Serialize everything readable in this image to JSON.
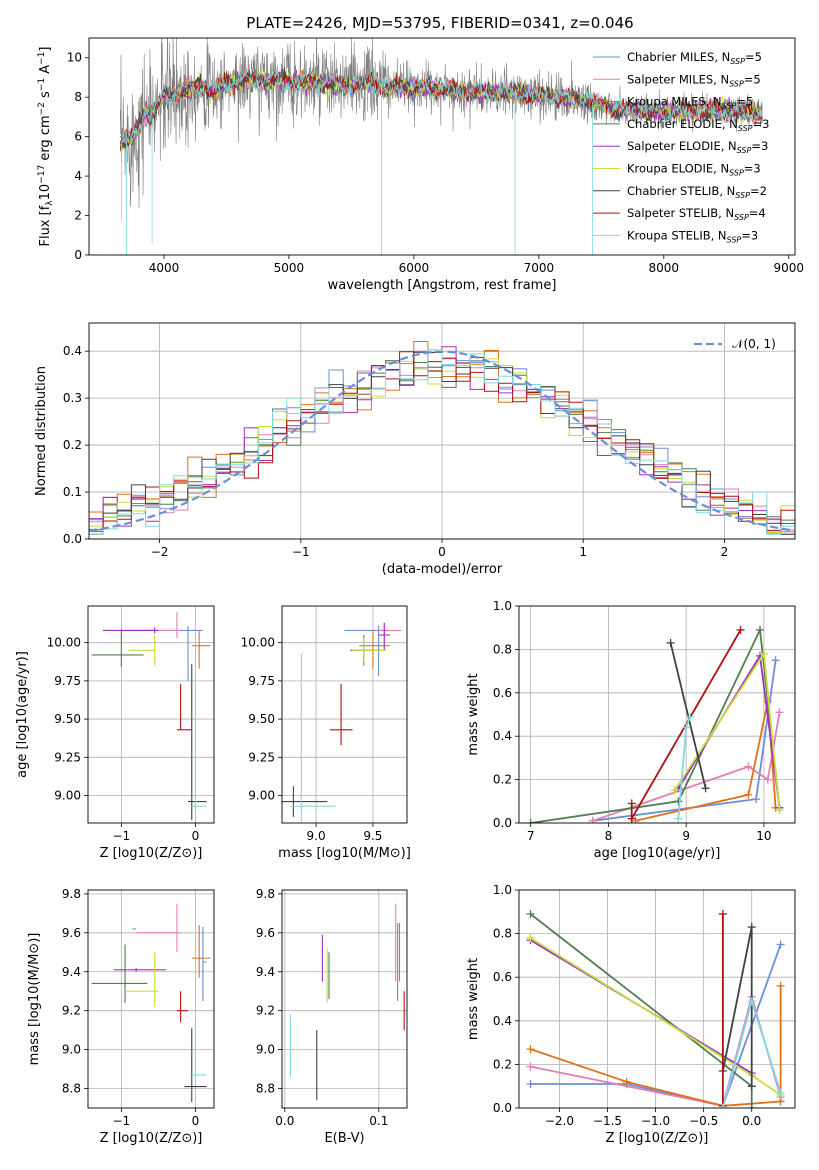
{
  "figure_title": "PLATE=2426, MJD=53795, FIBERID=0341, z=0.046",
  "series_styles": [
    {
      "key": "chab_miles",
      "label": "Chabrier MILES, N_SSP=5",
      "color": "#6a8fd8"
    },
    {
      "key": "salp_miles",
      "label": "Salpeter MILES, N_SSP=5",
      "color": "#e07fb8"
    },
    {
      "key": "krou_miles",
      "label": "Kroupa MILES, N_SSP=5",
      "color": "#e0701a"
    },
    {
      "key": "chab_elodie",
      "label": "Chabrier ELODIE, N_SSP=3",
      "color": "#4f7f4f"
    },
    {
      "key": "salp_elodie",
      "label": "Salpeter ELODIE, N_SSP=3",
      "color": "#a030c0"
    },
    {
      "key": "krou_elodie",
      "label": "Kroupa ELODIE, N_SSP=3",
      "color": "#c8dc3c"
    },
    {
      "key": "chab_stelib",
      "label": "Chabrier STELIB, N_SSP=2",
      "color": "#404040"
    },
    {
      "key": "salp_stelib",
      "label": "Salpeter STELIB, N_SSP=4",
      "color": "#b01010"
    },
    {
      "key": "krou_stelib",
      "label": "Kroupa STELIB, N_SSP=3",
      "color": "#80d8e0"
    }
  ],
  "chart_data": [
    {
      "id": "spectrum",
      "type": "line",
      "title": "PLATE=2426, MJD=53795, FIBERID=0341, z=0.046",
      "xlabel": "wavelength [Angstrom, rest frame]",
      "ylabel": "Flux [f_λ10^-17 erg cm^-2 s^-1 A^-1]",
      "xlim": [
        3400,
        9050
      ],
      "ylim": [
        0,
        11
      ],
      "xticks": [
        4000,
        5000,
        6000,
        7000,
        8000,
        9000
      ],
      "yticks": [
        0,
        2,
        4,
        6,
        8,
        10
      ],
      "grid": false,
      "legend": "right",
      "data_color": "#808080",
      "continuum": {
        "x": [
          3650,
          3700,
          3750,
          3800,
          3850,
          3900,
          3950,
          4000,
          4100,
          4200,
          4300,
          4400,
          4500,
          4600,
          4800,
          5000,
          5200,
          5400,
          5600,
          5800,
          6000,
          6200,
          6400,
          6600,
          6800,
          7000,
          7200,
          7400,
          7600,
          7800,
          8000,
          8200,
          8400,
          8600,
          8800
        ],
        "y": [
          5.6,
          5.8,
          6.0,
          6.6,
          7.3,
          7.0,
          7.6,
          8.0,
          8.2,
          8.4,
          8.6,
          8.3,
          8.7,
          8.8,
          8.9,
          8.8,
          8.7,
          8.6,
          8.7,
          8.5,
          8.5,
          8.4,
          8.3,
          8.2,
          8.2,
          8.1,
          8.0,
          7.8,
          7.4,
          7.3,
          7.2,
          7.3,
          7.3,
          7.3,
          7.2
        ]
      }
    },
    {
      "id": "residuals",
      "type": "line",
      "xlabel": "(data-model)/error",
      "ylabel": "Normed distribution",
      "xlim": [
        -2.5,
        2.5
      ],
      "ylim": [
        0,
        0.46
      ],
      "xticks": [
        -2,
        -1,
        0,
        1,
        2
      ],
      "yticks": [
        0.0,
        0.1,
        0.2,
        0.3,
        0.4
      ],
      "grid": true,
      "legend": "top-right",
      "reference": {
        "label": "N(0,1)",
        "mean": 0,
        "sigma": 1,
        "color": "#6a8fd8",
        "style": "dashed"
      },
      "bin_width": 0.1
    },
    {
      "id": "age_vs_Z",
      "type": "scatter",
      "xlabel": "Z [log10(Z/Z⊙)]",
      "ylabel": "age [log10(age/yr)]",
      "xlim": [
        -1.45,
        0.25
      ],
      "ylim": [
        8.82,
        10.24
      ],
      "xticks": [
        -1,
        0
      ],
      "yticks": [
        9.0,
        9.25,
        9.5,
        9.75,
        10.0
      ],
      "grid": true,
      "points": [
        {
          "s": "chab_miles",
          "x": -0.1,
          "xerr": [
            0.85,
            0.2
          ],
          "y": 10.08,
          "yerr": [
            0.33,
            0.03
          ]
        },
        {
          "s": "salp_miles",
          "x": -0.25,
          "xerr": [
            0.5,
            0.05
          ],
          "y": 10.08,
          "yerr": [
            0.05,
            0.12
          ]
        },
        {
          "s": "krou_miles",
          "x": 0.05,
          "xerr": [
            0.1,
            0.15
          ],
          "y": 9.98,
          "yerr": [
            0.15,
            0.1
          ]
        },
        {
          "s": "chab_elodie",
          "x": -1.0,
          "xerr": [
            0.4,
            0.3
          ],
          "y": 9.92,
          "yerr": [
            0.08,
            0.17
          ]
        },
        {
          "s": "salp_elodie",
          "x": -0.55,
          "xerr": [
            0.7,
            0.05
          ],
          "y": 10.08,
          "yerr": [
            0.02,
            0.02
          ]
        },
        {
          "s": "krou_elodie",
          "x": -0.55,
          "xerr": [
            0.35,
            0.0
          ],
          "y": 9.95,
          "yerr": [
            0.1,
            0.1
          ]
        },
        {
          "s": "chab_stelib",
          "x": -0.05,
          "xerr": [
            0.05,
            0.2
          ],
          "y": 8.96,
          "yerr": [
            0.12,
            0.9
          ]
        },
        {
          "s": "salp_stelib",
          "x": -0.2,
          "xerr": [
            0.05,
            0.15
          ],
          "y": 9.43,
          "yerr": [
            0.0,
            0.3
          ]
        },
        {
          "s": "krou_stelib",
          "x": 0.0,
          "xerr": [
            0.05,
            0.15
          ],
          "y": 8.93,
          "yerr": [
            0.08,
            1.0
          ]
        }
      ]
    },
    {
      "id": "age_vs_mass",
      "type": "scatter",
      "xlabel": "mass [log10(M/M⊙)]",
      "ylabel": "",
      "xlim": [
        8.7,
        9.8
      ],
      "ylim": [
        8.82,
        10.24
      ],
      "xticks": [
        9.0,
        9.5
      ],
      "yticks": [
        9.0,
        9.25,
        9.5,
        9.75,
        10.0
      ],
      "grid": true,
      "points": [
        {
          "s": "chab_miles",
          "x": 9.55,
          "xerr": [
            0.3,
            0.1
          ],
          "y": 10.08,
          "yerr": [
            0.3,
            0.03
          ]
        },
        {
          "s": "salp_miles",
          "x": 9.6,
          "xerr": [
            0.05,
            0.15
          ],
          "y": 10.08,
          "yerr": [
            0.1,
            0.05
          ]
        },
        {
          "s": "krou_miles",
          "x": 9.5,
          "xerr": [
            0.12,
            0.15
          ],
          "y": 9.98,
          "yerr": [
            0.15,
            0.1
          ]
        },
        {
          "s": "chab_elodie",
          "x": 9.42,
          "xerr": [
            0.12,
            0.15
          ],
          "y": 9.95,
          "yerr": [
            0.1,
            0.1
          ]
        },
        {
          "s": "salp_elodie",
          "x": 9.6,
          "xerr": [
            0.05,
            0.05
          ],
          "y": 10.05,
          "yerr": [
            0.1,
            0.08
          ]
        },
        {
          "s": "krou_elodie",
          "x": 9.42,
          "xerr": [
            0.1,
            0.2
          ],
          "y": 9.95,
          "yerr": [
            0.08,
            0.08
          ]
        },
        {
          "s": "chab_stelib",
          "x": 8.8,
          "xerr": [
            0.1,
            0.3
          ],
          "y": 8.96,
          "yerr": [
            0.1,
            0.1
          ]
        },
        {
          "s": "salp_stelib",
          "x": 9.22,
          "xerr": [
            0.1,
            0.1
          ],
          "y": 9.43,
          "yerr": [
            0.1,
            0.3
          ]
        },
        {
          "s": "krou_stelib",
          "x": 8.87,
          "xerr": [
            0.1,
            0.3
          ],
          "y": 8.93,
          "yerr": [
            0.1,
            1.0
          ]
        }
      ]
    },
    {
      "id": "massweight_vs_age",
      "type": "line",
      "xlabel": "age [log10(age/yr)]",
      "ylabel": "mass weight",
      "xlim": [
        6.85,
        10.4
      ],
      "ylim": [
        0.0,
        1.0
      ],
      "xticks": [
        7,
        8,
        9,
        10
      ],
      "yticks": [
        0.0,
        0.2,
        0.4,
        0.6,
        0.8,
        1.0
      ],
      "grid": true,
      "series": [
        {
          "s": "chab_miles",
          "x": [
            7.8,
            9.9,
            10.15
          ],
          "y": [
            0.01,
            0.11,
            0.75
          ]
        },
        {
          "s": "salp_miles",
          "x": [
            7.8,
            9.8,
            10.05,
            10.2
          ],
          "y": [
            0.01,
            0.26,
            0.2,
            0.51
          ]
        },
        {
          "s": "krou_miles",
          "x": [
            8.35,
            9.8,
            10.05,
            10.15
          ],
          "y": [
            0.01,
            0.13,
            0.56,
            0.07
          ]
        },
        {
          "s": "chab_elodie",
          "x": [
            7.0,
            8.9,
            9.95,
            10.2
          ],
          "y": [
            0.0,
            0.1,
            0.89,
            0.07
          ]
        },
        {
          "s": "salp_elodie",
          "x": [
            8.9,
            9.95,
            10.2
          ],
          "y": [
            0.16,
            0.77,
            0.07
          ]
        },
        {
          "s": "krou_elodie",
          "x": [
            8.85,
            10.0,
            10.2
          ],
          "y": [
            0.15,
            0.78,
            0.06
          ]
        },
        {
          "s": "chab_stelib",
          "x": [
            8.8,
            9.25
          ],
          "y": [
            0.83,
            0.16
          ]
        },
        {
          "s": "salp_stelib",
          "x": [
            8.3,
            8.3,
            9.7
          ],
          "y": [
            0.09,
            0.02,
            0.89
          ]
        },
        {
          "s": "krou_stelib",
          "x": [
            8.9,
            9.0,
            9.05
          ],
          "y": [
            0.02,
            0.44,
            0.49
          ]
        }
      ]
    },
    {
      "id": "mass_vs_Z",
      "type": "scatter",
      "xlabel": "Z [log10(Z/Z⊙)]",
      "ylabel": "mass [log10(M/M⊙)]",
      "xlim": [
        -1.45,
        0.25
      ],
      "ylim": [
        8.7,
        9.82
      ],
      "xticks": [
        -1,
        0
      ],
      "yticks": [
        8.8,
        9.0,
        9.2,
        9.4,
        9.6,
        9.8
      ],
      "grid": true,
      "points": [
        {
          "s": "chab_miles",
          "x": -0.8,
          "xerr": [
            0.05,
            0.0
          ],
          "y": 9.62,
          "yerr": [
            0.0,
            0.0
          ]
        },
        {
          "s": "salp_miles",
          "x": -0.25,
          "xerr": [
            0.55,
            0.05
          ],
          "y": 9.6,
          "yerr": [
            0.1,
            0.15
          ]
        },
        {
          "s": "krou_miles",
          "x": 0.05,
          "xerr": [
            0.1,
            0.15
          ],
          "y": 9.47,
          "yerr": [
            0.1,
            0.17
          ]
        },
        {
          "s": "chab_elodie",
          "x": -0.95,
          "xerr": [
            0.45,
            0.3
          ],
          "y": 9.34,
          "yerr": [
            0.1,
            0.2
          ]
        },
        {
          "s": "salp_elodie",
          "x": -0.8,
          "xerr": [
            0.3,
            0.4
          ],
          "y": 9.41,
          "yerr": [
            0.01,
            0.01
          ]
        },
        {
          "s": "krou_elodie",
          "x": -0.55,
          "xerr": [
            0.4,
            0.05
          ],
          "y": 9.3,
          "yerr": [
            0.08,
            0.2
          ]
        },
        {
          "s": "chab_stelib",
          "x": -0.05,
          "xerr": [
            0.1,
            0.2
          ],
          "y": 8.81,
          "yerr": [
            0.08,
            0.3
          ]
        },
        {
          "s": "salp_stelib",
          "x": -0.2,
          "xerr": [
            0.05,
            0.1
          ],
          "y": 9.2,
          "yerr": [
            0.06,
            0.1
          ]
        },
        {
          "s": "krou_stelib",
          "x": 0.0,
          "xerr": [
            0.05,
            0.15
          ],
          "y": 8.87,
          "yerr": [
            0.05,
            0.3
          ]
        },
        {
          "s": "chab_miles",
          "x": 0.1,
          "xerr": [
            0.0,
            0.05
          ],
          "y": 9.45,
          "yerr": [
            0.2,
            0.18
          ]
        }
      ]
    },
    {
      "id": "mass_vs_ebv",
      "type": "scatter",
      "xlabel": "E(B-V)",
      "ylabel": "",
      "xlim": [
        -0.003,
        0.13
      ],
      "ylim": [
        8.7,
        9.82
      ],
      "xticks": [
        0.0,
        0.1
      ],
      "yticks": [
        8.8,
        9.0,
        9.2,
        9.4,
        9.6,
        9.8
      ],
      "grid": true,
      "points": [
        {
          "s": "chab_miles",
          "x": 0.12,
          "xerr": [
            0,
            0
          ],
          "y": 9.45,
          "yerr": [
            0.2,
            0.2
          ]
        },
        {
          "s": "salp_miles",
          "x": 0.118,
          "xerr": [
            0,
            0
          ],
          "y": 9.55,
          "yerr": [
            0.2,
            0.2
          ]
        },
        {
          "s": "krou_miles",
          "x": 0.122,
          "xerr": [
            0,
            0
          ],
          "y": 9.5,
          "yerr": [
            0.15,
            0.15
          ]
        },
        {
          "s": "chab_elodie",
          "x": 0.047,
          "xerr": [
            0,
            0
          ],
          "y": 9.38,
          "yerr": [
            0.12,
            0.12
          ]
        },
        {
          "s": "salp_elodie",
          "x": 0.04,
          "xerr": [
            0,
            0
          ],
          "y": 9.47,
          "yerr": [
            0.12,
            0.12
          ]
        },
        {
          "s": "krou_elodie",
          "x": 0.045,
          "xerr": [
            0,
            0
          ],
          "y": 9.38,
          "yerr": [
            0.14,
            0.14
          ]
        },
        {
          "s": "chab_stelib",
          "x": 0.034,
          "xerr": [
            0,
            0
          ],
          "y": 8.92,
          "yerr": [
            0.18,
            0.18
          ]
        },
        {
          "s": "salp_stelib",
          "x": 0.127,
          "xerr": [
            0,
            0
          ],
          "y": 9.2,
          "yerr": [
            0.1,
            0.1
          ]
        },
        {
          "s": "krou_stelib",
          "x": 0.006,
          "xerr": [
            0,
            0
          ],
          "y": 9.02,
          "yerr": [
            0.16,
            0.16
          ]
        }
      ]
    },
    {
      "id": "massweight_vs_Z",
      "type": "line",
      "xlabel": "Z [log10(Z/Z⊙)]",
      "ylabel": "mass weight",
      "xlim": [
        -2.42,
        0.45
      ],
      "ylim": [
        0.0,
        1.0
      ],
      "xticks": [
        -2.0,
        -1.5,
        -1.0,
        -0.5,
        0.0
      ],
      "yticks": [
        0.0,
        0.2,
        0.4,
        0.6,
        0.8,
        1.0
      ],
      "grid": true,
      "series": [
        {
          "s": "chab_miles",
          "x": [
            -2.3,
            -1.3,
            -0.3,
            0.3
          ],
          "y": [
            0.11,
            0.11,
            0.01,
            0.75
          ]
        },
        {
          "s": "salp_miles",
          "x": [
            -2.3,
            -0.3,
            0.0,
            0.3
          ],
          "y": [
            0.19,
            0.01,
            0.51,
            0.05
          ]
        },
        {
          "s": "krou_miles",
          "x": [
            -2.3,
            -1.3,
            -0.3,
            0.3,
            0.3
          ],
          "y": [
            0.27,
            0.12,
            0.01,
            0.03,
            0.56
          ]
        },
        {
          "s": "chab_elodie",
          "x": [
            -2.3,
            0.0,
            0.0
          ],
          "y": [
            0.89,
            0.1,
            0.0
          ]
        },
        {
          "s": "salp_elodie",
          "x": [
            -2.3,
            0.0
          ],
          "y": [
            0.77,
            0.16
          ]
        },
        {
          "s": "krou_elodie",
          "x": [
            -2.3,
            0.0,
            0.3
          ],
          "y": [
            0.78,
            0.15,
            0.06
          ]
        },
        {
          "s": "chab_stelib",
          "x": [
            -0.3,
            0.0,
            0.0
          ],
          "y": [
            0.17,
            0.83,
            0.1
          ]
        },
        {
          "s": "salp_stelib",
          "x": [
            -0.3,
            -0.3
          ],
          "y": [
            0.89,
            0.01
          ]
        },
        {
          "s": "krou_stelib",
          "x": [
            -0.3,
            0.0,
            0.3
          ],
          "y": [
            0.0,
            0.49,
            0.07
          ]
        }
      ]
    }
  ]
}
